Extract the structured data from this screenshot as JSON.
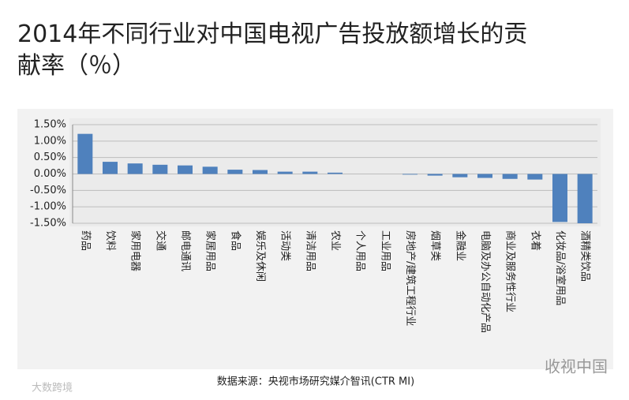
{
  "chart_data": {
    "type": "bar",
    "title": "2014年不同行业对中国电视广告投放额增长的贡献率（％）",
    "categories": [
      "药品",
      "饮料",
      "家用电器",
      "交通",
      "邮电通讯",
      "家居用品",
      "食品",
      "娱乐及休闲",
      "活动类",
      "清洁用品",
      "农业",
      "个人用品",
      "工业用品",
      "房地产/建筑工程行业",
      "烟草类",
      "金融业",
      "电脑及办公自动化产品",
      "商业及服务性行业",
      "衣着",
      "化妆品/浴室用品",
      "酒精类饮品"
    ],
    "values": [
      1.22,
      0.37,
      0.32,
      0.28,
      0.26,
      0.22,
      0.13,
      0.12,
      0.07,
      0.07,
      0.04,
      0.0,
      0.0,
      -0.02,
      -0.05,
      -0.1,
      -0.12,
      -0.15,
      -0.17,
      -1.46,
      -1.5
    ],
    "color": "#4f81bd",
    "ylim": [
      -1.5,
      1.5
    ],
    "yticks": [
      {
        "value": 1.5,
        "label": "1.50%"
      },
      {
        "value": 1.0,
        "label": "1.00%"
      },
      {
        "value": 0.5,
        "label": "0.50%"
      },
      {
        "value": 0,
        "label": "0.00%"
      },
      {
        "value": -0.5,
        "label": "-0.50%"
      },
      {
        "value": -1.0,
        "label": "-1.00%"
      },
      {
        "value": -1.5,
        "label": "-1.50%"
      }
    ],
    "grid": true,
    "source": "数据来源：央视市场研究媒介智讯(CTR MI)",
    "watermarks": [
      "收视中国",
      "大数跨境"
    ]
  }
}
